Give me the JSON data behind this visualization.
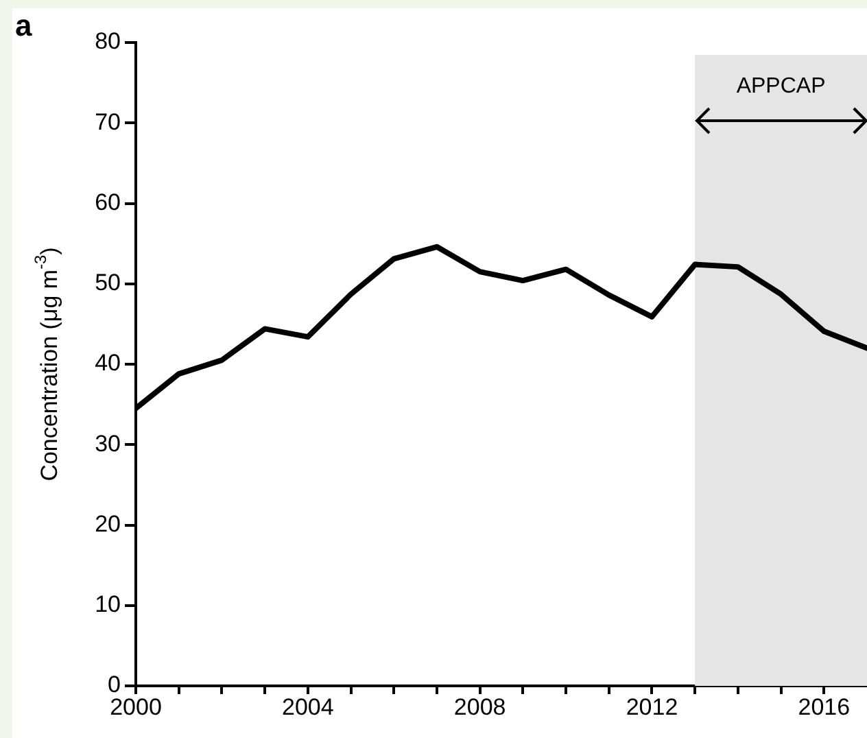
{
  "chart_data": {
    "type": "line",
    "ylabel": "Concentration (μg m$^{-3}$)",
    "annotations": [
      "a"
    ],
    "x": [
      2000,
      2001,
      2002,
      2003,
      2004,
      2005,
      2006,
      2007,
      2008,
      2009,
      2010,
      2011,
      2012,
      2013,
      2014,
      2015,
      2016,
      2017
    ],
    "series": [
      {
        "color": "#000000",
        "values": [
          34.5,
          38.8,
          40.5,
          44.4,
          43.4,
          48.7,
          53.1,
          54.6,
          51.5,
          50.4,
          51.8,
          48.6,
          45.9,
          52.4,
          52.1,
          48.7,
          44.1,
          42.0
        ]
      }
    ],
    "xlim": [
      2000,
      2017
    ],
    "ylim": [
      0,
      80
    ],
    "xticks": [
      2000,
      {
        "value": 2001,
        "label": null
      },
      {
        "value": 2002,
        "label": null
      },
      {
        "value": 2003,
        "label": null
      },
      2004,
      {
        "value": 2005,
        "label": null
      },
      {
        "value": 2006,
        "label": null
      },
      {
        "value": 2007,
        "label": null
      },
      2008,
      {
        "value": 2009,
        "label": null
      },
      {
        "value": 2010,
        "label": null
      },
      {
        "value": 2011,
        "label": null
      },
      2012,
      {
        "value": 2013,
        "label": null
      },
      {
        "value": 2014,
        "label": null
      },
      {
        "value": 2015,
        "label": null
      },
      2016
    ],
    "yticks": [
      0,
      10,
      20,
      30,
      40,
      50,
      60,
      70,
      80
    ],
    "bands": [
      {
        "axis": "x",
        "from": 2013,
        "to": 2017,
        "label": "APPCAP",
        "color": "#e5e5e5"
      }
    ],
    "grid": false,
    "legend": false,
    "marker": "none",
    "line_style": "solid"
  }
}
